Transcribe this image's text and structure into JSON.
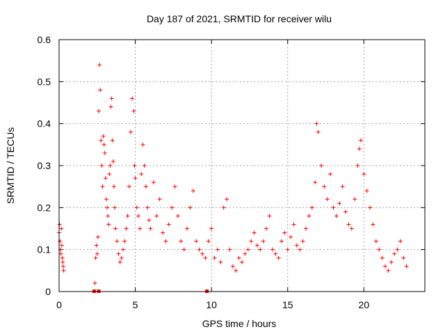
{
  "chart_data": {
    "type": "scatter",
    "title": "Day 187 of 2021, SRMTID for receiver wilu",
    "xlabel": "GPS time / hours",
    "ylabel": "SRMTID / TECUs",
    "xlim": [
      0,
      24
    ],
    "ylim": [
      0,
      0.6
    ],
    "xticks": [
      0,
      5,
      10,
      15,
      20
    ],
    "yticks": [
      0,
      0.1,
      0.2,
      0.3,
      0.4,
      0.5,
      0.6
    ],
    "grid": true,
    "marker": "+",
    "color": "#ff0000",
    "series": [
      {
        "name": "SRMTID",
        "x": [
          0.0,
          0.03,
          0.06,
          0.09,
          0.12,
          0.15,
          0.18,
          0.21,
          0.24,
          0.27,
          0.3,
          2.35,
          2.4,
          2.45,
          2.5,
          2.55,
          2.6,
          2.65,
          2.7,
          2.75,
          2.8,
          2.85,
          2.9,
          2.95,
          3.0,
          3.05,
          3.1,
          3.15,
          3.2,
          3.25,
          3.3,
          3.35,
          3.4,
          3.45,
          3.5,
          3.55,
          3.6,
          3.65,
          3.7,
          3.8,
          3.9,
          4.0,
          4.1,
          4.2,
          4.3,
          4.4,
          4.5,
          4.6,
          4.7,
          4.8,
          4.9,
          4.95,
          5.0,
          5.1,
          5.2,
          5.3,
          5.4,
          5.5,
          5.6,
          5.7,
          5.8,
          5.9,
          6.0,
          6.2,
          6.4,
          6.6,
          6.8,
          7.0,
          7.2,
          7.4,
          7.6,
          7.8,
          8.0,
          8.2,
          8.4,
          8.6,
          8.8,
          9.0,
          9.2,
          9.4,
          9.6,
          9.8,
          10.0,
          10.2,
          10.4,
          10.6,
          10.8,
          11.0,
          11.2,
          11.4,
          11.6,
          11.8,
          12.0,
          12.2,
          12.4,
          12.6,
          12.8,
          13.0,
          13.2,
          13.4,
          13.6,
          13.8,
          14.0,
          14.2,
          14.4,
          14.6,
          14.8,
          15.0,
          15.2,
          15.4,
          15.6,
          15.8,
          16.0,
          16.2,
          16.4,
          16.6,
          16.8,
          16.9,
          17.0,
          17.2,
          17.4,
          17.6,
          17.8,
          18.0,
          18.2,
          18.4,
          18.6,
          18.8,
          19.0,
          19.2,
          19.4,
          19.6,
          19.7,
          19.8,
          20.0,
          20.2,
          20.4,
          20.6,
          20.8,
          21.0,
          21.2,
          21.4,
          21.6,
          21.8,
          22.0,
          22.2,
          22.4,
          22.6,
          22.8
        ],
        "y": [
          0.14,
          0.16,
          0.12,
          0.1,
          0.09,
          0.15,
          0.11,
          0.08,
          0.07,
          0.06,
          0.05,
          0.02,
          0.08,
          0.11,
          0.09,
          0.13,
          0.43,
          0.54,
          0.48,
          0.36,
          0.3,
          0.25,
          0.37,
          0.35,
          0.33,
          0.27,
          0.22,
          0.2,
          0.18,
          0.16,
          0.28,
          0.3,
          0.44,
          0.46,
          0.36,
          0.31,
          0.25,
          0.2,
          0.15,
          0.12,
          0.09,
          0.07,
          0.08,
          0.1,
          0.12,
          0.15,
          0.18,
          0.25,
          0.38,
          0.46,
          0.43,
          0.3,
          0.27,
          0.2,
          0.18,
          0.15,
          0.28,
          0.35,
          0.3,
          0.25,
          0.2,
          0.17,
          0.15,
          0.26,
          0.18,
          0.22,
          0.14,
          0.12,
          0.16,
          0.2,
          0.25,
          0.18,
          0.12,
          0.1,
          0.15,
          0.2,
          0.24,
          0.12,
          0.1,
          0.09,
          0.08,
          0.12,
          0.15,
          0.08,
          0.1,
          0.07,
          0.2,
          0.22,
          0.1,
          0.06,
          0.05,
          0.08,
          0.07,
          0.09,
          0.1,
          0.12,
          0.14,
          0.11,
          0.1,
          0.12,
          0.15,
          0.18,
          0.1,
          0.09,
          0.08,
          0.12,
          0.14,
          0.1,
          0.13,
          0.16,
          0.11,
          0.1,
          0.12,
          0.15,
          0.18,
          0.2,
          0.26,
          0.4,
          0.38,
          0.3,
          0.25,
          0.22,
          0.28,
          0.2,
          0.18,
          0.21,
          0.25,
          0.19,
          0.16,
          0.15,
          0.22,
          0.3,
          0.34,
          0.36,
          0.28,
          0.24,
          0.2,
          0.16,
          0.12,
          0.1,
          0.08,
          0.06,
          0.05,
          0.07,
          0.09,
          0.1,
          0.12,
          0.08,
          0.06
        ]
      }
    ],
    "bottom_markers_x": [
      2.3,
      2.6,
      9.7
    ]
  }
}
